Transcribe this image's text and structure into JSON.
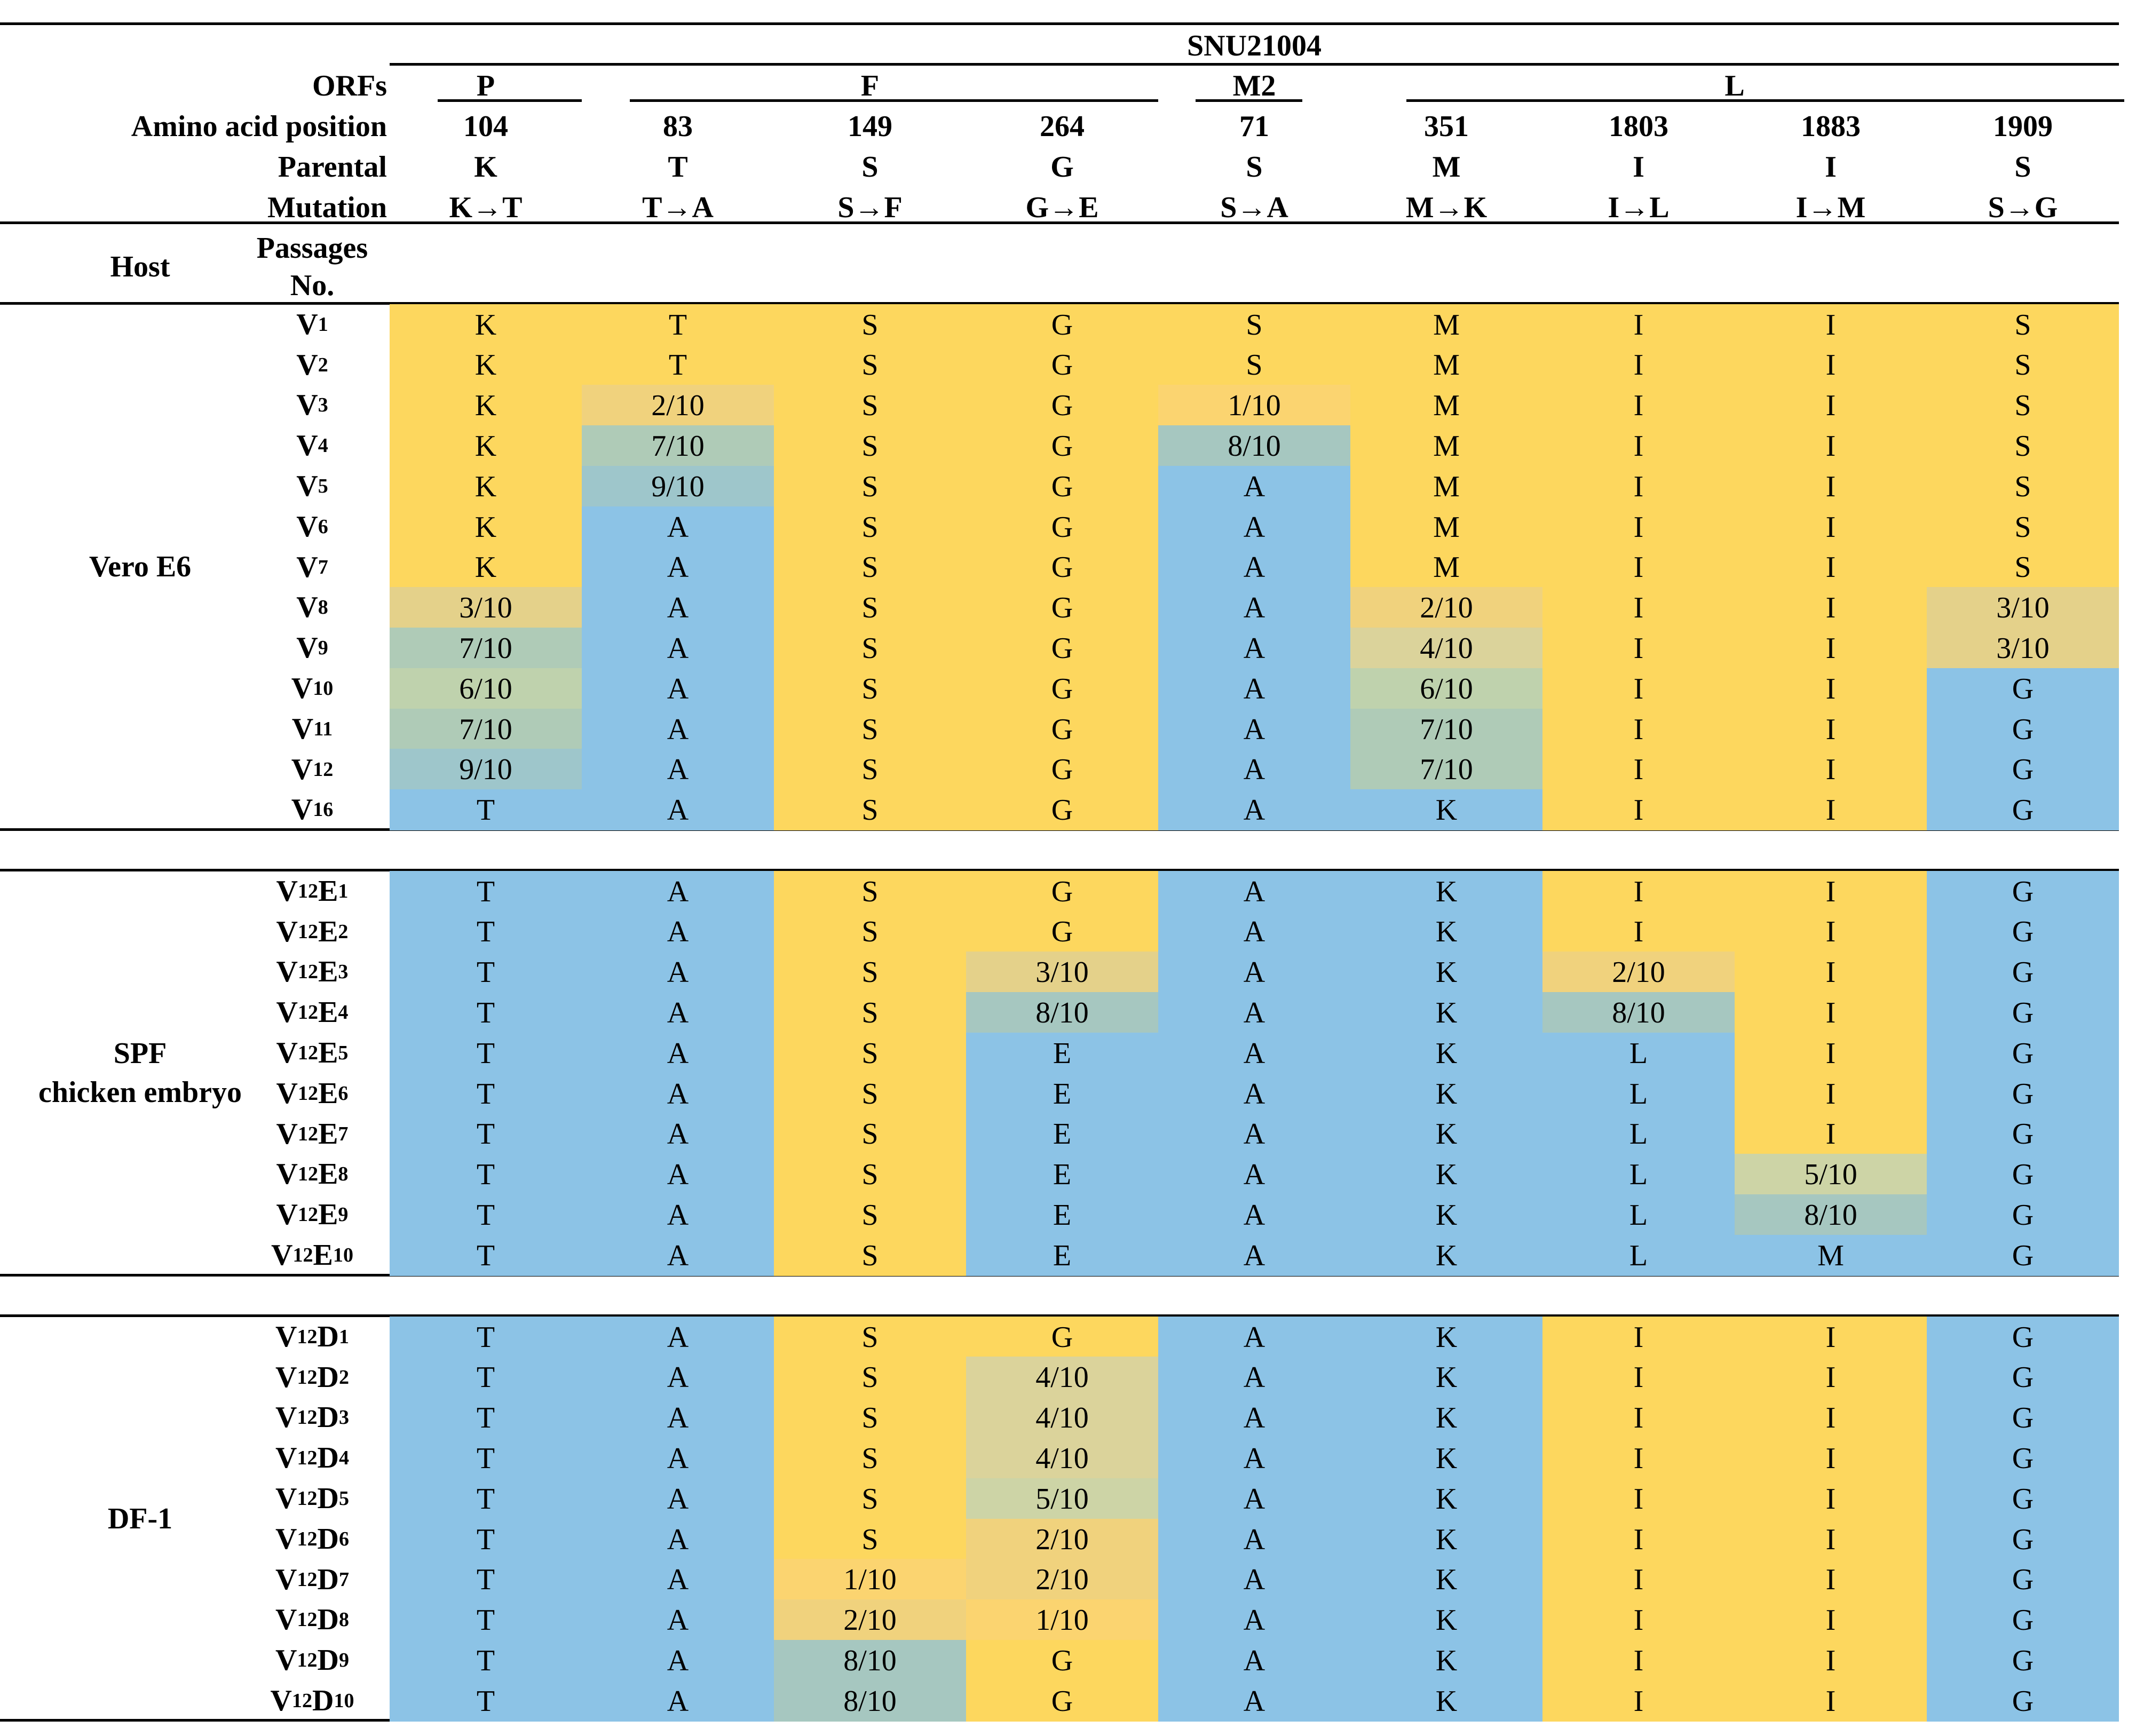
{
  "strain": "SNU21004",
  "header_labels": {
    "orfs": "ORFs",
    "aa_position": "Amino acid position",
    "parental": "Parental",
    "mutation": "Mutation",
    "host": "Host",
    "passages_line1": "Passages",
    "passages_line2": "No."
  },
  "orf_groups": [
    {
      "name": "P",
      "span": [
        0,
        0
      ]
    },
    {
      "name": "F",
      "span": [
        1,
        3
      ]
    },
    {
      "name": "M2",
      "span": [
        4,
        4
      ]
    },
    {
      "name": "L",
      "span": [
        5,
        8
      ]
    }
  ],
  "columns": [
    {
      "position": "104",
      "parental": "K",
      "mutation": "K→T"
    },
    {
      "position": "83",
      "parental": "T",
      "mutation": "T→A"
    },
    {
      "position": "149",
      "parental": "S",
      "mutation": "S→F"
    },
    {
      "position": "264",
      "parental": "G",
      "mutation": "G→E"
    },
    {
      "position": "71",
      "parental": "S",
      "mutation": "S→A"
    },
    {
      "position": "351",
      "parental": "M",
      "mutation": "M→K"
    },
    {
      "position": "1803",
      "parental": "I",
      "mutation": "I→L"
    },
    {
      "position": "1883",
      "parental": "I",
      "mutation": "I→M"
    },
    {
      "position": "1909",
      "parental": "S",
      "mutation": "S→G"
    }
  ],
  "colors": {
    "parental": "#fdd75e",
    "mutant": "#8cc3e6",
    "mix_1": "#fbd470",
    "mix_2": "#f0d27d",
    "mix_3": "#e4d18a",
    "mix_4": "#dbd39b",
    "mix_5": "#cdd4a6",
    "mix_6": "#bfd2ad",
    "mix_7": "#afcbb7",
    "mix_8": "#a6c7c0",
    "mix_9": "#9ec6cb"
  },
  "groups": [
    {
      "host": "Vero E6",
      "rows": [
        {
          "p": "V",
          "s": "1",
          "e": "",
          "es": "",
          "cells": [
            "K",
            "T",
            "S",
            "G",
            "S",
            "M",
            "I",
            "I",
            "S"
          ]
        },
        {
          "p": "V",
          "s": "2",
          "e": "",
          "es": "",
          "cells": [
            "K",
            "T",
            "S",
            "G",
            "S",
            "M",
            "I",
            "I",
            "S"
          ]
        },
        {
          "p": "V",
          "s": "3",
          "e": "",
          "es": "",
          "cells": [
            "K",
            "2/10",
            "S",
            "G",
            "1/10",
            "M",
            "I",
            "I",
            "S"
          ]
        },
        {
          "p": "V",
          "s": "4",
          "e": "",
          "es": "",
          "cells": [
            "K",
            "7/10",
            "S",
            "G",
            "8/10",
            "M",
            "I",
            "I",
            "S"
          ]
        },
        {
          "p": "V",
          "s": "5",
          "e": "",
          "es": "",
          "cells": [
            "K",
            "9/10",
            "S",
            "G",
            "A",
            "M",
            "I",
            "I",
            "S"
          ]
        },
        {
          "p": "V",
          "s": "6",
          "e": "",
          "es": "",
          "cells": [
            "K",
            "A",
            "S",
            "G",
            "A",
            "M",
            "I",
            "I",
            "S"
          ]
        },
        {
          "p": "V",
          "s": "7",
          "e": "",
          "es": "",
          "cells": [
            "K",
            "A",
            "S",
            "G",
            "A",
            "M",
            "I",
            "I",
            "S"
          ]
        },
        {
          "p": "V",
          "s": "8",
          "e": "",
          "es": "",
          "cells": [
            "3/10",
            "A",
            "S",
            "G",
            "A",
            "2/10",
            "I",
            "I",
            "3/10"
          ]
        },
        {
          "p": "V",
          "s": "9",
          "e": "",
          "es": "",
          "cells": [
            "7/10",
            "A",
            "S",
            "G",
            "A",
            "4/10",
            "I",
            "I",
            "3/10"
          ]
        },
        {
          "p": "V",
          "s": "10",
          "e": "",
          "es": "",
          "cells": [
            "6/10",
            "A",
            "S",
            "G",
            "A",
            "6/10",
            "I",
            "I",
            "G"
          ]
        },
        {
          "p": "V",
          "s": "11",
          "e": "",
          "es": "",
          "cells": [
            "7/10",
            "A",
            "S",
            "G",
            "A",
            "7/10",
            "I",
            "I",
            "G"
          ]
        },
        {
          "p": "V",
          "s": "12",
          "e": "",
          "es": "",
          "cells": [
            "9/10",
            "A",
            "S",
            "G",
            "A",
            "7/10",
            "I",
            "I",
            "G"
          ]
        },
        {
          "p": "V",
          "s": "16",
          "e": "",
          "es": "",
          "cells": [
            "T",
            "A",
            "S",
            "G",
            "A",
            "K",
            "I",
            "I",
            "G"
          ]
        }
      ]
    },
    {
      "host": "SPF chicken embryo",
      "rows": [
        {
          "p": "V",
          "s": "12",
          "e": "E",
          "es": "1",
          "cells": [
            "T",
            "A",
            "S",
            "G",
            "A",
            "K",
            "I",
            "I",
            "G"
          ]
        },
        {
          "p": "V",
          "s": "12",
          "e": "E",
          "es": "2",
          "cells": [
            "T",
            "A",
            "S",
            "G",
            "A",
            "K",
            "I",
            "I",
            "G"
          ]
        },
        {
          "p": "V",
          "s": "12",
          "e": "E",
          "es": "3",
          "cells": [
            "T",
            "A",
            "S",
            "3/10",
            "A",
            "K",
            "2/10",
            "I",
            "G"
          ]
        },
        {
          "p": "V",
          "s": "12",
          "e": "E",
          "es": "4",
          "cells": [
            "T",
            "A",
            "S",
            "8/10",
            "A",
            "K",
            "8/10",
            "I",
            "G"
          ]
        },
        {
          "p": "V",
          "s": "12",
          "e": "E",
          "es": "5",
          "cells": [
            "T",
            "A",
            "S",
            "E",
            "A",
            "K",
            "L",
            "I",
            "G"
          ]
        },
        {
          "p": "V",
          "s": "12",
          "e": "E",
          "es": "6",
          "cells": [
            "T",
            "A",
            "S",
            "E",
            "A",
            "K",
            "L",
            "I",
            "G"
          ]
        },
        {
          "p": "V",
          "s": "12",
          "e": "E",
          "es": "7",
          "cells": [
            "T",
            "A",
            "S",
            "E",
            "A",
            "K",
            "L",
            "I",
            "G"
          ]
        },
        {
          "p": "V",
          "s": "12",
          "e": "E",
          "es": "8",
          "cells": [
            "T",
            "A",
            "S",
            "E",
            "A",
            "K",
            "L",
            "5/10",
            "G"
          ]
        },
        {
          "p": "V",
          "s": "12",
          "e": "E",
          "es": "9",
          "cells": [
            "T",
            "A",
            "S",
            "E",
            "A",
            "K",
            "L",
            "8/10",
            "G"
          ]
        },
        {
          "p": "V",
          "s": "12",
          "e": "E",
          "es": "10",
          "cells": [
            "T",
            "A",
            "S",
            "E",
            "A",
            "K",
            "L",
            "M",
            "G"
          ]
        }
      ]
    },
    {
      "host": "DF-1",
      "rows": [
        {
          "p": "V",
          "s": "12",
          "e": "D",
          "es": "1",
          "cells": [
            "T",
            "A",
            "S",
            "G",
            "A",
            "K",
            "I",
            "I",
            "G"
          ]
        },
        {
          "p": "V",
          "s": "12",
          "e": "D",
          "es": "2",
          "cells": [
            "T",
            "A",
            "S",
            "4/10",
            "A",
            "K",
            "I",
            "I",
            "G"
          ]
        },
        {
          "p": "V",
          "s": "12",
          "e": "D",
          "es": "3",
          "cells": [
            "T",
            "A",
            "S",
            "4/10",
            "A",
            "K",
            "I",
            "I",
            "G"
          ]
        },
        {
          "p": "V",
          "s": "12",
          "e": "D",
          "es": "4",
          "cells": [
            "T",
            "A",
            "S",
            "4/10",
            "A",
            "K",
            "I",
            "I",
            "G"
          ]
        },
        {
          "p": "V",
          "s": "12",
          "e": "D",
          "es": "5",
          "cells": [
            "T",
            "A",
            "S",
            "5/10",
            "A",
            "K",
            "I",
            "I",
            "G"
          ]
        },
        {
          "p": "V",
          "s": "12",
          "e": "D",
          "es": "6",
          "cells": [
            "T",
            "A",
            "S",
            "2/10",
            "A",
            "K",
            "I",
            "I",
            "G"
          ]
        },
        {
          "p": "V",
          "s": "12",
          "e": "D",
          "es": "7",
          "cells": [
            "T",
            "A",
            "1/10",
            "2/10",
            "A",
            "K",
            "I",
            "I",
            "G"
          ]
        },
        {
          "p": "V",
          "s": "12",
          "e": "D",
          "es": "8",
          "cells": [
            "T",
            "A",
            "2/10",
            "1/10",
            "A",
            "K",
            "I",
            "I",
            "G"
          ]
        },
        {
          "p": "V",
          "s": "12",
          "e": "D",
          "es": "9",
          "cells": [
            "T",
            "A",
            "8/10",
            "G",
            "A",
            "K",
            "I",
            "I",
            "G"
          ]
        },
        {
          "p": "V",
          "s": "12",
          "e": "D",
          "es": "10",
          "cells": [
            "T",
            "A",
            "8/10",
            "G",
            "A",
            "K",
            "I",
            "I",
            "G"
          ]
        }
      ]
    }
  ]
}
